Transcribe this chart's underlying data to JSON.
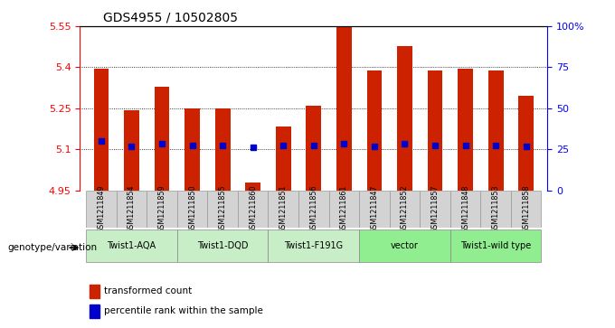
{
  "title": "GDS4955 / 10502805",
  "samples": [
    "GSM1211849",
    "GSM1211854",
    "GSM1211859",
    "GSM1211850",
    "GSM1211855",
    "GSM1211860",
    "GSM1211851",
    "GSM1211856",
    "GSM1211861",
    "GSM1211847",
    "GSM1211852",
    "GSM1211857",
    "GSM1211848",
    "GSM1211853",
    "GSM1211858"
  ],
  "bar_tops": [
    5.395,
    5.242,
    5.33,
    5.248,
    5.248,
    4.978,
    5.183,
    5.258,
    5.56,
    5.388,
    5.477,
    5.388,
    5.395,
    5.388,
    5.297
  ],
  "bar_bottom": 4.95,
  "blue_dots": [
    5.13,
    5.11,
    5.12,
    5.115,
    5.115,
    5.108,
    5.115,
    5.115,
    5.12,
    5.112,
    5.12,
    5.115,
    5.115,
    5.115,
    5.112
  ],
  "ylim": [
    4.95,
    5.55
  ],
  "yticks_left": [
    4.95,
    5.1,
    5.25,
    5.4,
    5.55
  ],
  "yticks_right_vals": [
    0,
    25,
    50,
    75,
    100
  ],
  "yticks_right_labels": [
    "0",
    "25",
    "50",
    "75",
    "100%"
  ],
  "bar_color": "#cc2200",
  "blue_color": "#0000cc",
  "groups": [
    {
      "label": "Twist1-AQA",
      "indices": [
        0,
        1,
        2
      ],
      "color": "#c8eec8"
    },
    {
      "label": "Twist1-DQD",
      "indices": [
        3,
        4,
        5
      ],
      "color": "#c8eec8"
    },
    {
      "label": "Twist1-F191G",
      "indices": [
        6,
        7,
        8
      ],
      "color": "#c8eec8"
    },
    {
      "label": "vector",
      "indices": [
        9,
        10,
        11
      ],
      "color": "#90EE90"
    },
    {
      "label": "Twist1-wild type",
      "indices": [
        12,
        13,
        14
      ],
      "color": "#90EE90"
    }
  ],
  "xlabel_left": "genotype/variation",
  "background_sample": "#d3d3d3",
  "legend_red_label": "transformed count",
  "legend_blue_label": "percentile rank within the sample"
}
